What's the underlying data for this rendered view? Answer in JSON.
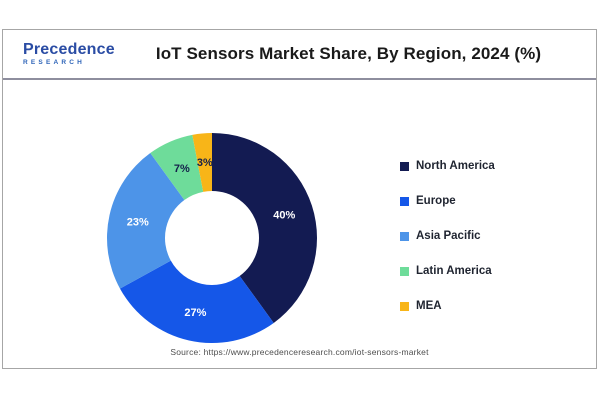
{
  "header": {
    "logo": {
      "name": "Precedence",
      "sub": "RESEARCH"
    },
    "title": "IoT Sensors Market Share, By Region, 2024 (%)"
  },
  "chart_data": {
    "type": "pie",
    "subtype": "donut",
    "title": "IoT Sensors Market Share, By Region, 2024 (%)",
    "categories": [
      "North America",
      "Europe",
      "Asia Pacific",
      "Latin America",
      "MEA"
    ],
    "values": [
      40,
      27,
      23,
      7,
      3
    ],
    "unit": "%",
    "colors": [
      "#131B52",
      "#1557E8",
      "#4D94E8",
      "#6EDC9A",
      "#F8B518"
    ],
    "label_colors": [
      "#ffffff",
      "#ffffff",
      "#ffffff",
      "#14204A",
      "#14204A"
    ],
    "start_angle_deg": 0,
    "direction": "clockwise",
    "legend_position": "right",
    "inner_radius_ratio": 0.45
  },
  "footer": {
    "source": "Source: https://www.precedenceresearch.com/iot-sensors-market"
  }
}
